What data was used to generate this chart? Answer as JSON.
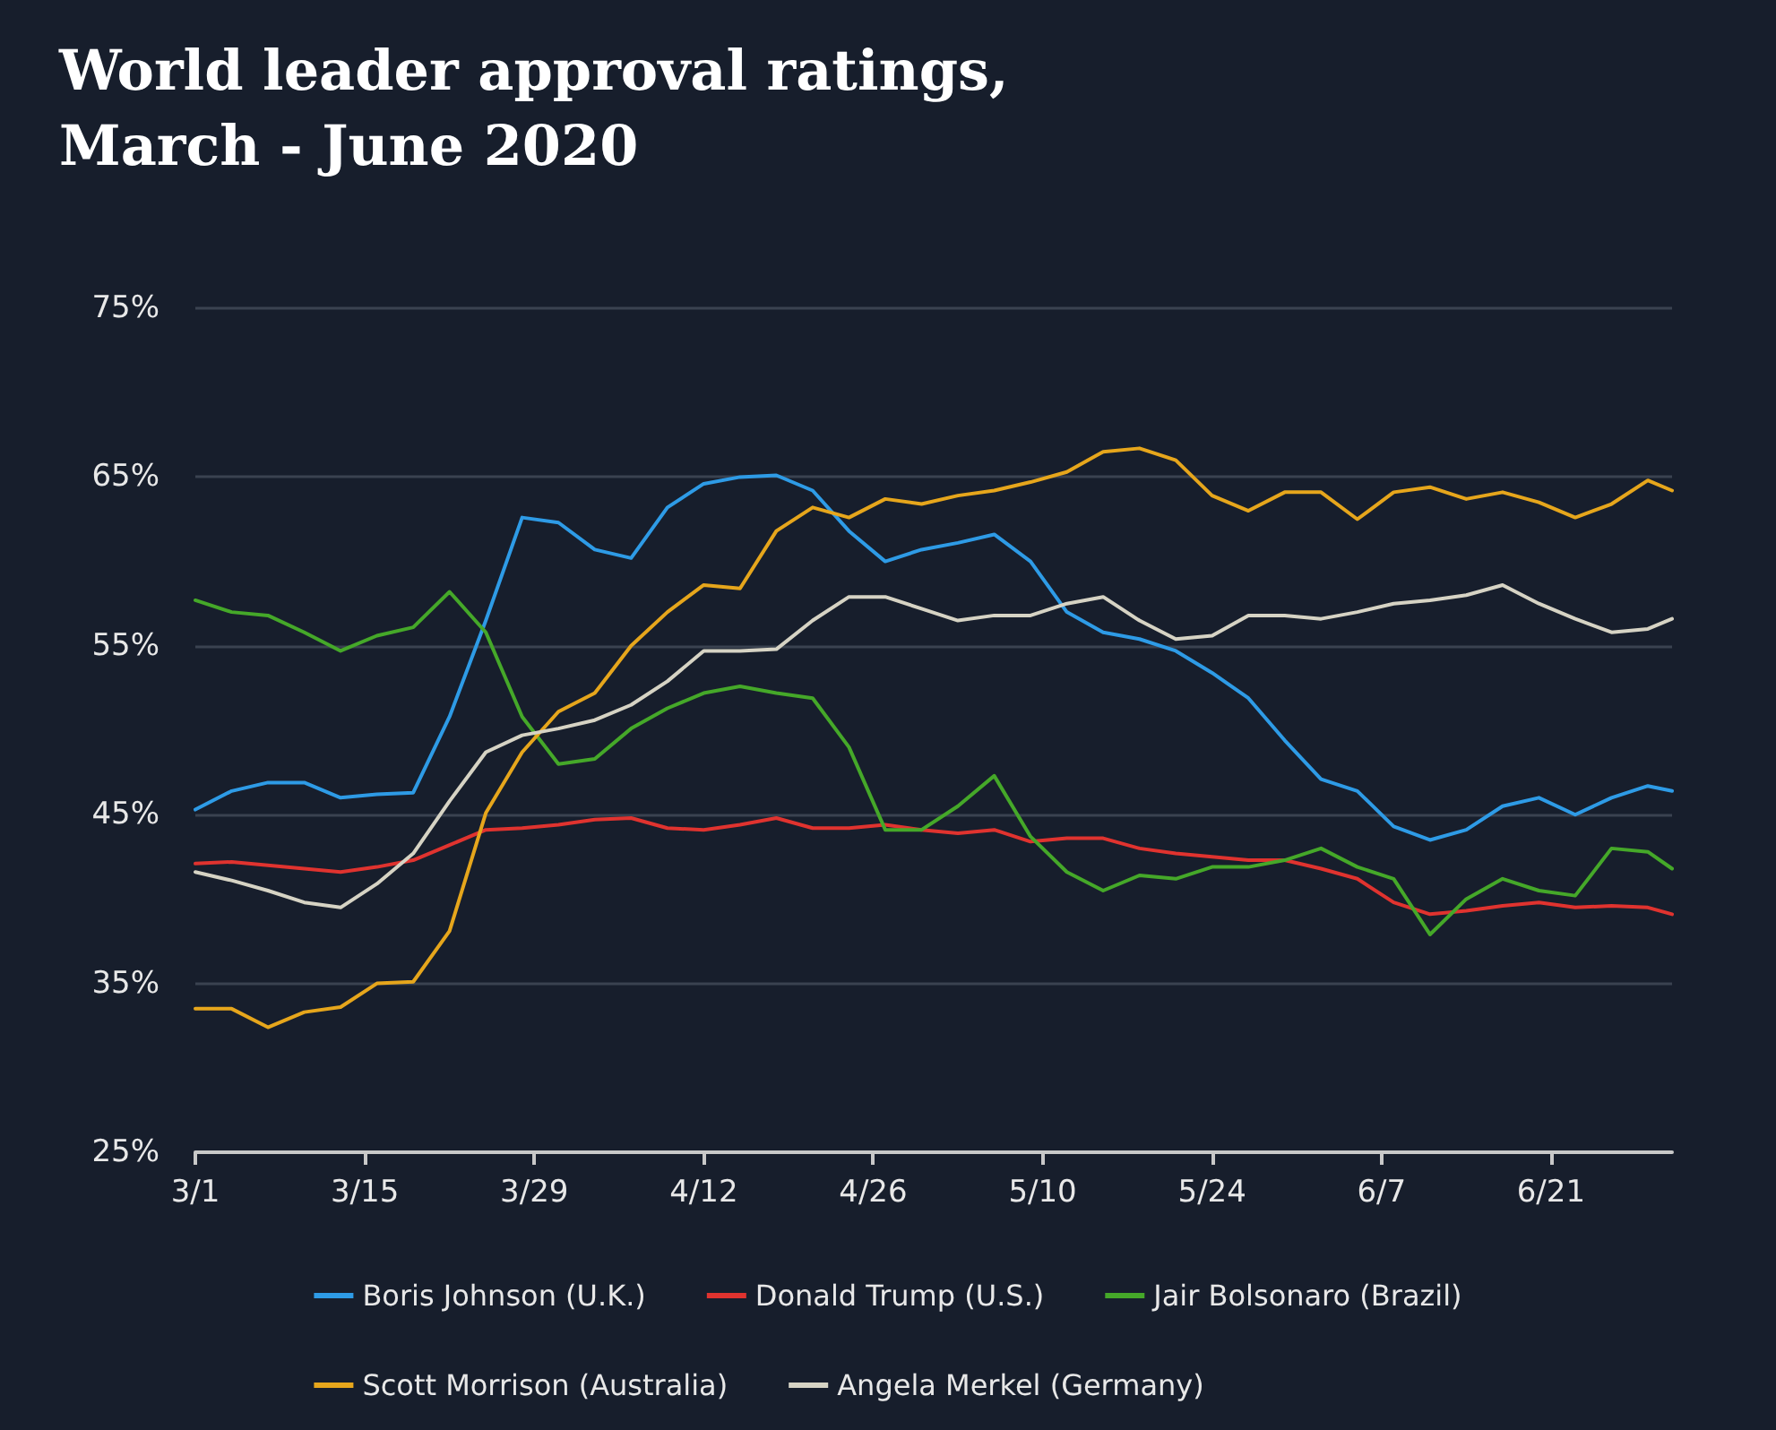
{
  "chart_data": {
    "type": "line",
    "title": "World leader approval ratings,\nMarch - June 2020",
    "x": [
      "2020-03-01",
      "2020-03-04",
      "2020-03-07",
      "2020-03-10",
      "2020-03-13",
      "2020-03-16",
      "2020-03-19",
      "2020-03-22",
      "2020-03-25",
      "2020-03-28",
      "2020-03-31",
      "2020-04-03",
      "2020-04-06",
      "2020-04-09",
      "2020-04-12",
      "2020-04-15",
      "2020-04-18",
      "2020-04-21",
      "2020-04-24",
      "2020-04-27",
      "2020-04-30",
      "2020-05-03",
      "2020-05-06",
      "2020-05-09",
      "2020-05-12",
      "2020-05-15",
      "2020-05-18",
      "2020-05-21",
      "2020-05-24",
      "2020-05-27",
      "2020-05-30",
      "2020-06-02",
      "2020-06-05",
      "2020-06-08",
      "2020-06-11",
      "2020-06-14",
      "2020-06-17",
      "2020-06-20",
      "2020-06-23",
      "2020-06-26",
      "2020-06-29",
      "2020-07-01"
    ],
    "series": [
      {
        "name": "Boris Johnson (U.K.)",
        "color": "#2e9be6",
        "values": [
          45.3,
          46.4,
          46.9,
          46.9,
          46.0,
          46.2,
          46.3,
          50.8,
          56.5,
          62.6,
          62.3,
          60.7,
          60.2,
          63.2,
          64.6,
          65.0,
          65.1,
          64.2,
          61.8,
          60.0,
          60.7,
          61.1,
          61.6,
          60.0,
          57.0,
          55.8,
          55.4,
          54.7,
          53.4,
          51.9,
          49.4,
          47.1,
          46.4,
          44.3,
          43.5,
          44.1,
          45.5,
          46.0,
          45.0,
          46.0,
          46.7,
          46.4
        ]
      },
      {
        "name": "Donald Trump (U.S.)",
        "color": "#e0332f",
        "values": [
          42.1,
          42.2,
          42.0,
          41.8,
          41.6,
          41.9,
          42.3,
          43.2,
          44.1,
          44.2,
          44.4,
          44.7,
          44.8,
          44.2,
          44.1,
          44.4,
          44.8,
          44.2,
          44.2,
          44.4,
          44.1,
          43.9,
          44.1,
          43.4,
          43.6,
          43.6,
          43.0,
          42.7,
          42.5,
          42.3,
          42.3,
          41.8,
          41.2,
          39.8,
          39.1,
          39.3,
          39.6,
          39.8,
          39.5,
          39.6,
          39.5,
          39.1
        ]
      },
      {
        "name": "Jair Bolsonaro (Brazil)",
        "color": "#45a829",
        "values": [
          57.7,
          57.0,
          56.8,
          55.8,
          54.7,
          55.6,
          56.1,
          58.2,
          55.8,
          50.8,
          48.0,
          48.3,
          50.1,
          51.3,
          52.2,
          52.6,
          52.2,
          51.9,
          49.0,
          44.1,
          44.1,
          45.5,
          47.3,
          43.7,
          41.6,
          40.5,
          41.4,
          41.2,
          41.9,
          41.9,
          42.3,
          43.0,
          41.9,
          41.2,
          37.9,
          40.0,
          41.2,
          40.5,
          40.2,
          43.0,
          42.8,
          41.8
        ]
      },
      {
        "name": "Scott Morrison (Australia)",
        "color": "#e6a61c",
        "values": [
          33.5,
          33.5,
          32.4,
          33.3,
          33.6,
          35.0,
          35.1,
          38.1,
          45.1,
          48.7,
          51.1,
          52.2,
          55.0,
          57.0,
          58.6,
          58.4,
          61.8,
          63.2,
          62.6,
          63.7,
          63.4,
          63.9,
          64.2,
          64.7,
          65.3,
          66.5,
          66.7,
          66.0,
          63.9,
          63.0,
          64.1,
          64.1,
          62.5,
          64.1,
          64.4,
          63.7,
          64.1,
          63.5,
          62.6,
          63.4,
          64.8,
          64.2
        ]
      },
      {
        "name": "Angela Merkel (Germany)",
        "color": "#d6d3c4",
        "values": [
          41.6,
          41.1,
          40.5,
          39.8,
          39.5,
          40.9,
          42.7,
          45.8,
          48.7,
          49.7,
          50.1,
          50.6,
          51.5,
          52.9,
          54.7,
          54.7,
          54.8,
          56.5,
          57.9,
          57.9,
          57.2,
          56.5,
          56.8,
          56.8,
          57.5,
          57.9,
          56.5,
          55.4,
          55.6,
          56.8,
          56.8,
          56.6,
          57.0,
          57.5,
          57.7,
          58.0,
          58.6,
          57.5,
          56.6,
          55.8,
          56.0,
          56.6
        ]
      }
    ],
    "xlim": [
      "2020-03-01",
      "2020-07-01"
    ],
    "xticks": [
      {
        "value": "2020-03-01",
        "label": "3/1"
      },
      {
        "value": "2020-03-15",
        "label": "3/15"
      },
      {
        "value": "2020-03-29",
        "label": "3/29"
      },
      {
        "value": "2020-04-12",
        "label": "4/12"
      },
      {
        "value": "2020-04-26",
        "label": "4/26"
      },
      {
        "value": "2020-05-10",
        "label": "5/10"
      },
      {
        "value": "2020-05-24",
        "label": "5/24"
      },
      {
        "value": "2020-06-07",
        "label": "6/7"
      },
      {
        "value": "2020-06-21",
        "label": "6/21"
      }
    ],
    "ylim": [
      25,
      75
    ],
    "yticks": [
      {
        "value": 25,
        "label": "25%"
      },
      {
        "value": 35,
        "label": "35%"
      },
      {
        "value": 45,
        "label": "45%"
      },
      {
        "value": 55,
        "label": "55%"
      },
      {
        "value": 65,
        "label": "65%"
      },
      {
        "value": 75,
        "label": "75%"
      }
    ],
    "grid": "y",
    "legend": "bottom",
    "line_style": "solid"
  }
}
